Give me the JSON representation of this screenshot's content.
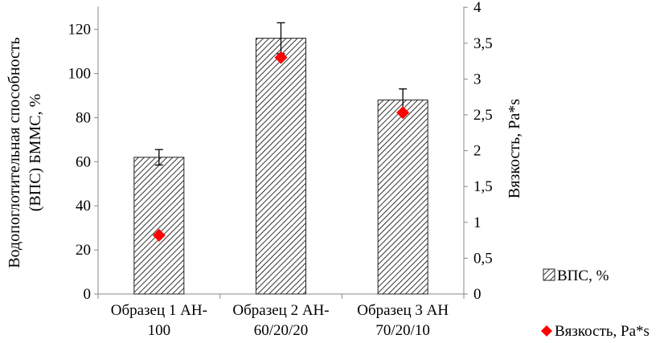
{
  "chart_data": {
    "type": "bar",
    "title": "",
    "categories": [
      "Образец 1 АН-\n100",
      "Образец 2 АН-\n60/20/20",
      "Образец 3 АН\n70/20/10"
    ],
    "series": [
      {
        "name": "ВПС, %",
        "kind": "bar",
        "axis": "left",
        "pattern": "diagonal-hatch",
        "values": [
          62,
          116,
          88
        ],
        "error": [
          3.5,
          7,
          5
        ]
      },
      {
        "name": "Вязкость, Pa*s",
        "kind": "scatter",
        "axis": "right",
        "marker": "diamond",
        "color": "#ff0000",
        "values": [
          0.82,
          3.3,
          2.53
        ]
      }
    ],
    "ylabel": "Водопоглотительная способность (ВПС) БММС, %",
    "ylabel_lines": [
      "Водопоглотительная способность",
      "(ВПС) БММС, %"
    ],
    "y2label": "Вязкость, Pa*s",
    "ylim": [
      0,
      130
    ],
    "y2lim": [
      0,
      4
    ],
    "yticks": [
      0,
      20,
      40,
      60,
      80,
      100,
      120
    ],
    "y2ticks": [
      "0",
      "0,5",
      "1",
      "1,5",
      "2",
      "2,5",
      "3",
      "3,5",
      "4"
    ],
    "grid": false,
    "legend_position": "right"
  }
}
